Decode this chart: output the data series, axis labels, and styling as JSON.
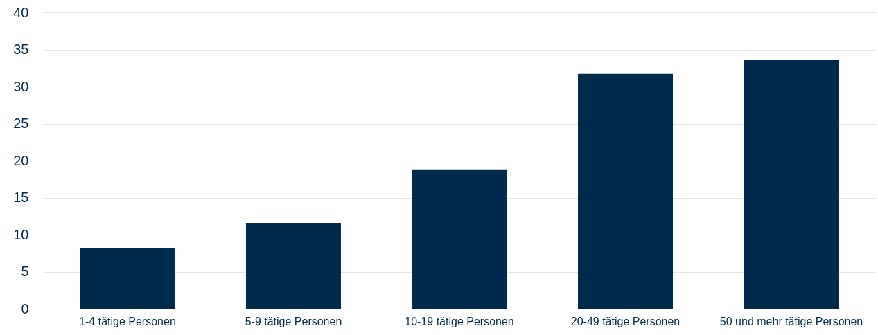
{
  "chart_data": {
    "type": "bar",
    "categories": [
      "1-4 tätige Personen",
      "5-9 tätige Personen",
      "10-19 tätige Personen",
      "20-49 tätige Personen",
      "50 und mehr tätige Personen"
    ],
    "values": [
      8.2,
      11.6,
      18.8,
      31.7,
      33.6
    ],
    "color": "#002b4c",
    "ylim": [
      0,
      40
    ],
    "yticks": [
      0,
      5,
      10,
      15,
      20,
      25,
      30,
      35,
      40
    ],
    "grid": "y"
  }
}
